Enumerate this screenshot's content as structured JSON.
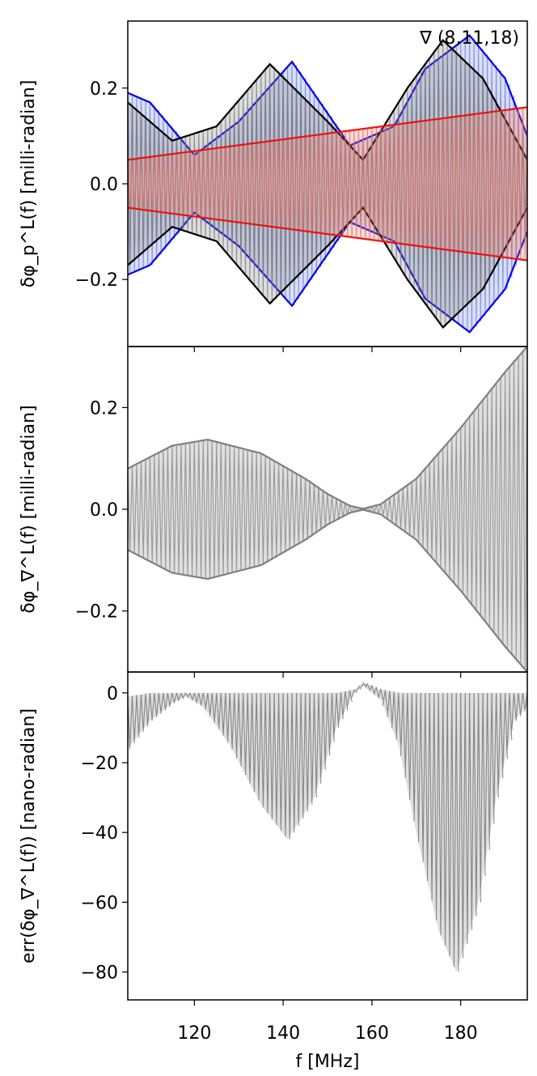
{
  "figure": {
    "xlabel": "f [MHz]",
    "xticks": [
      "120",
      "140",
      "160",
      "180"
    ]
  },
  "chart_data": [
    {
      "type": "line",
      "panel": "top",
      "annotation": "∇ (8,11,18)",
      "ylabel": "δφ_p^L(f) [milli-radian]",
      "xlim": [
        105,
        195
      ],
      "ylim": [
        -0.34,
        0.34
      ],
      "yticks": [
        "0.2",
        "0.0",
        "−0.2"
      ],
      "ytick_values": [
        0.2,
        0.0,
        -0.2
      ],
      "series": [
        {
          "color": "#0000ee",
          "fill": "#6a7fd6",
          "x": [
            105,
            110,
            120,
            130,
            142,
            155,
            165,
            172,
            182,
            190,
            195
          ],
          "envelope": [
            0.19,
            0.17,
            0.06,
            0.13,
            0.255,
            0.08,
            0.12,
            0.24,
            0.31,
            0.22,
            0.1
          ]
        },
        {
          "color": "#000000",
          "fill": "#777777",
          "x": [
            105,
            115,
            125,
            137,
            150,
            158,
            168,
            176,
            185,
            195
          ],
          "envelope": [
            0.17,
            0.09,
            0.12,
            0.25,
            0.13,
            0.05,
            0.2,
            0.3,
            0.22,
            0.05
          ]
        },
        {
          "color": "#ee1111",
          "fill": "#e07060",
          "x": [
            105,
            195
          ],
          "envelope": [
            0.05,
            0.16
          ]
        }
      ]
    },
    {
      "type": "line",
      "panel": "middle",
      "ylabel": "δφ_∇^L(f) [milli-radian]",
      "xlim": [
        105,
        195
      ],
      "ylim": [
        -0.32,
        0.32
      ],
      "yticks": [
        "0.2",
        "0.0",
        "−0.2"
      ],
      "ytick_values": [
        0.2,
        0.0,
        -0.2
      ],
      "series": [
        {
          "color": "#808080",
          "fill": "#808080",
          "x": [
            105,
            115,
            123,
            135,
            145,
            150,
            155,
            158,
            162,
            170,
            180,
            190,
            195
          ],
          "envelope": [
            0.08,
            0.125,
            0.137,
            0.11,
            0.06,
            0.03,
            0.007,
            0.001,
            0.01,
            0.06,
            0.16,
            0.27,
            0.32
          ]
        }
      ]
    },
    {
      "type": "line",
      "panel": "bottom",
      "ylabel": "err(δφ_∇^L(f)) [nano-radian]",
      "xlim": [
        105,
        195
      ],
      "ylim": [
        -88,
        6
      ],
      "yticks": [
        "0",
        "−20",
        "−40",
        "−60",
        "−80"
      ],
      "ytick_values": [
        0,
        -20,
        -40,
        -60,
        -80
      ],
      "series": [
        {
          "color": "#808080",
          "fill": "#808080",
          "x": [
            105,
            110,
            115,
            118,
            122,
            128,
            135,
            141,
            147,
            152,
            156,
            158,
            162,
            166,
            170,
            175,
            179,
            184,
            188,
            192,
            195
          ],
          "lower": [
            -16,
            -8,
            -3,
            -1,
            -4,
            -15,
            -32,
            -42,
            -30,
            -10,
            0,
            2,
            -2,
            -15,
            -40,
            -68,
            -80,
            -60,
            -30,
            -8,
            -4
          ],
          "upper": [
            -1,
            0,
            0,
            0,
            0,
            0,
            0,
            0,
            0,
            0,
            1,
            3,
            1,
            0,
            0,
            0,
            0,
            0,
            0,
            0,
            0
          ]
        }
      ]
    }
  ]
}
